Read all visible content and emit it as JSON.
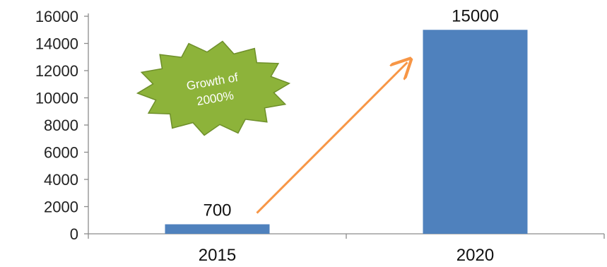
{
  "chart_data": {
    "type": "bar",
    "categories": [
      "2015",
      "2020"
    ],
    "values": [
      700,
      15000
    ],
    "data_labels": [
      "700",
      "15000"
    ],
    "title": "",
    "xlabel": "",
    "ylabel": "",
    "ylim": [
      0,
      16000
    ],
    "yticks": [
      0,
      2000,
      4000,
      6000,
      8000,
      10000,
      12000,
      14000,
      16000
    ],
    "ytick_labels": [
      "0",
      "2000",
      "4000",
      "6000",
      "8000",
      "10000",
      "12000",
      "14000",
      "16000"
    ],
    "grid": false,
    "legend": "none",
    "bar_color": "#4F81BD",
    "annotations": {
      "callout": {
        "lines": [
          "Growth of",
          "2000%"
        ],
        "shape": "explosion-burst",
        "fill_color": "#8DB33A",
        "stroke_color": "#6E8F2A"
      },
      "arrow": {
        "from_category": "2015",
        "to_category": "2020",
        "color": "#F79646"
      }
    }
  }
}
